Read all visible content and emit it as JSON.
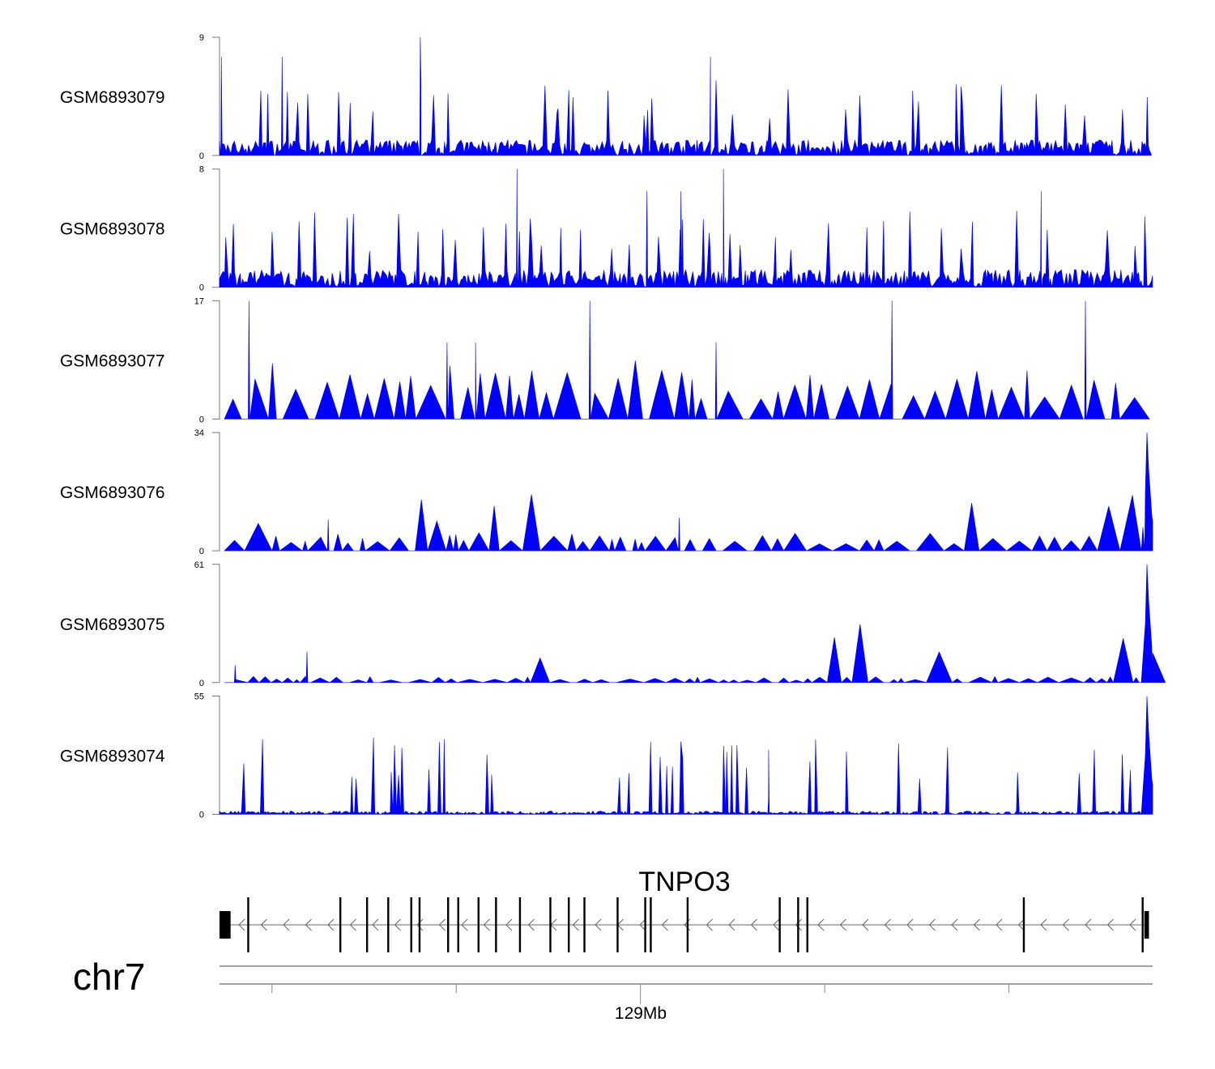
{
  "chart_data": {
    "type": "area",
    "title": "",
    "chromosome": "chr7",
    "x_unit": "kb relative to 129Mb",
    "xlim": [
      -45.7,
      55.6
    ],
    "axis": {
      "ticks": [
        -40,
        -20,
        0,
        20,
        40
      ],
      "labeled_tick": 0,
      "label": "129Mb"
    },
    "color": "#0000ff",
    "tracks": [
      {
        "name": "GSM6893079",
        "ylim": [
          0,
          9
        ],
        "ymax_label": "9",
        "ymin_label": "0",
        "baseline": 1.2,
        "style": "dense",
        "peaks": [
          [
            -45.5,
            7.5
          ],
          [
            -38.9,
            7.5
          ],
          [
            -23.9,
            9
          ],
          [
            7.6,
            7.5
          ]
        ],
        "end_peak": 0
      },
      {
        "name": "GSM6893078",
        "ylim": [
          0,
          8
        ],
        "ymax_label": "8",
        "ymin_label": "0",
        "baseline": 1.2,
        "style": "dense",
        "peaks": [
          [
            -13.4,
            8
          ],
          [
            0.7,
            6.5
          ],
          [
            4.4,
            6.5
          ],
          [
            9.0,
            8
          ],
          [
            43.5,
            6.5
          ]
        ],
        "end_peak": 0
      },
      {
        "name": "GSM6893077",
        "ylim": [
          0,
          17
        ],
        "ymax_label": "17",
        "ymin_label": "0",
        "baseline": 5.5,
        "style": "sparse",
        "peaks": [
          [
            -42.5,
            17
          ],
          [
            -5.5,
            17
          ],
          [
            27.3,
            17
          ],
          [
            48.3,
            17
          ],
          [
            -21.0,
            11
          ],
          [
            -17.9,
            11
          ],
          [
            8.2,
            11
          ]
        ],
        "end_peak": 0
      },
      {
        "name": "GSM6893076",
        "ylim": [
          0,
          34
        ],
        "ymax_label": "34",
        "ymin_label": "0",
        "baseline": 4,
        "style": "sparse",
        "peaks": [
          [
            -33.9,
            9
          ],
          [
            4.2,
            9.5
          ],
          [
            55.0,
            34
          ]
        ],
        "end_peak": 34
      },
      {
        "name": "GSM6893075",
        "ylim": [
          0,
          61
        ],
        "ymax_label": "61",
        "ymin_label": "0",
        "baseline": 2.5,
        "style": "sparse",
        "peaks": [
          [
            -36.2,
            16
          ],
          [
            -44,
            9
          ],
          [
            55.0,
            61
          ]
        ],
        "end_peak": 61
      },
      {
        "name": "GSM6893074",
        "ylim": [
          0,
          55
        ],
        "ymax_label": "55",
        "ymin_label": "0",
        "baseline": 1.5,
        "style": "dense",
        "peaks": [
          [
            13.9,
            7
          ],
          [
            55.0,
            55
          ]
        ],
        "end_peak": 55
      }
    ],
    "gene": {
      "name": "TNPO3",
      "strand": "-",
      "start": -45.7,
      "end": 55.2,
      "utr_blocks": [
        [
          -45.7,
          -44.5
        ],
        [
          54.7,
          55.2
        ]
      ],
      "exons": [
        -42.6,
        -32.6,
        -29.7,
        -27.4,
        -24.9,
        -24.0,
        -20.9,
        -19.8,
        -17.6,
        -15.7,
        -13.1,
        -9.8,
        -7.8,
        -6.1,
        -2.5,
        0.5,
        1.1,
        5.1,
        15.1,
        17.1,
        18.1,
        41.6,
        54.5
      ]
    }
  }
}
